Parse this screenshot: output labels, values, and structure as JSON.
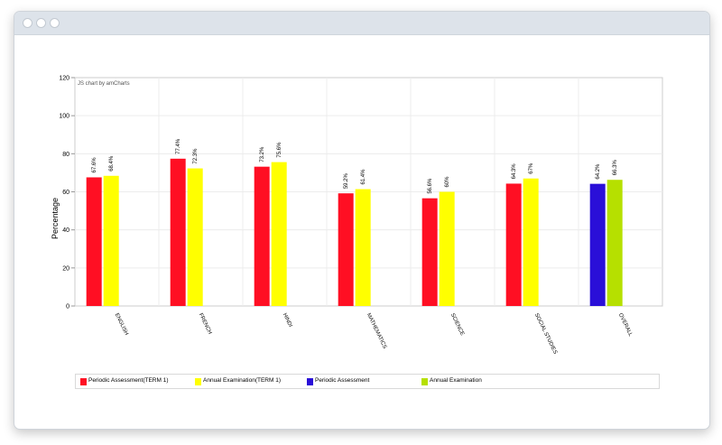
{
  "chart_data": {
    "type": "bar",
    "credit": "JS chart by amCharts",
    "ylabel": "Percentage",
    "ylim": [
      0,
      120
    ],
    "yticks": [
      0,
      20,
      40,
      60,
      80,
      100,
      120
    ],
    "grid": true,
    "legend_position": "bottom",
    "categories": [
      "ENGLISH",
      "FRENCH",
      "HINDI",
      "MATHEMATICS",
      "SCIENCE",
      "SOCIAL STUDIES",
      "OVERALL"
    ],
    "series": [
      {
        "name": "Periodic Assessment(TERM 1)",
        "color": "#ff0f23",
        "values": [
          67.6,
          77.4,
          73.2,
          59.2,
          56.6,
          64.3,
          null
        ],
        "labels": [
          "67.6%",
          "77.4%",
          "73.2%",
          "59.2%",
          "56.6%",
          "64.3%",
          null
        ]
      },
      {
        "name": "Annual Examination(TERM 1)",
        "color": "#ffff00",
        "values": [
          68.4,
          72.3,
          75.6,
          61.4,
          60,
          67,
          null
        ],
        "labels": [
          "68.4%",
          "72.3%",
          "75.6%",
          "61.4%",
          "60%",
          "67%",
          null
        ]
      },
      {
        "name": "Periodic Assessment",
        "color": "#2a0fd8",
        "values": [
          null,
          null,
          null,
          null,
          null,
          null,
          64.2
        ],
        "labels": [
          null,
          null,
          null,
          null,
          null,
          null,
          "64.2%"
        ]
      },
      {
        "name": "Annual Examination",
        "color": "#b6e000",
        "values": [
          null,
          null,
          null,
          null,
          null,
          null,
          66.3
        ],
        "labels": [
          null,
          null,
          null,
          null,
          null,
          null,
          "66.3%"
        ]
      }
    ]
  }
}
